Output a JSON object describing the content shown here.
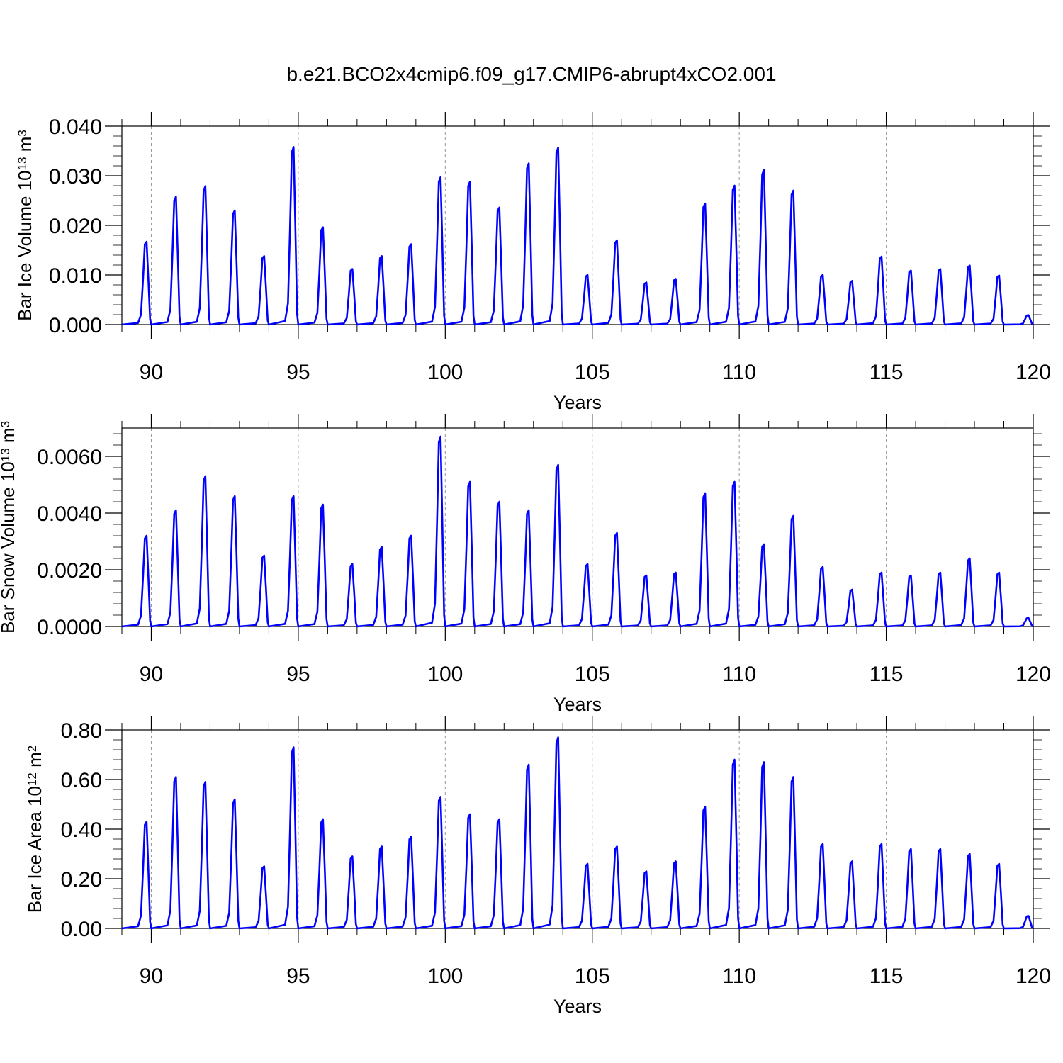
{
  "title": "b.e21.BCO2x4cmip6.f09_g17.CMIP6-abrupt4xCO2.001",
  "line_color": "#0000ff",
  "chart_data": [
    {
      "type": "line",
      "id": "ice-volume",
      "ylabel": "Bar Ice Volume 10",
      "ylabel_exp": "13",
      "ylabel_unit": " m",
      "ylabel_unit_exp": "3",
      "xlabel": "Years",
      "xlim": [
        89,
        120
      ],
      "ylim": [
        0,
        0.04
      ],
      "xticks": [
        90,
        95,
        100,
        105,
        110,
        115,
        120
      ],
      "xtick_labels": [
        "90",
        "95",
        "100",
        "105",
        "110",
        "115",
        "120"
      ],
      "yticks": [
        0,
        0.01,
        0.02,
        0.03,
        0.04
      ],
      "ytick_labels": [
        "0.000",
        "0.010",
        "0.020",
        "0.030",
        "0.040"
      ],
      "grid": "vertical dashed",
      "peaks": [
        0.0167,
        0.0258,
        0.0279,
        0.023,
        0.0138,
        0.0358,
        0.0196,
        0.0112,
        0.0138,
        0.0162,
        0.0297,
        0.0288,
        0.0236,
        0.0325,
        0.0357,
        0.01,
        0.017,
        0.0085,
        0.0092,
        0.0244,
        0.028,
        0.0312,
        0.027,
        0.01,
        0.0088,
        0.0137,
        0.0109,
        0.0112,
        0.0119,
        0.0099,
        0.0019
      ]
    },
    {
      "type": "line",
      "id": "snow-volume",
      "ylabel": "Bar Snow Volume 10",
      "ylabel_exp": "13",
      "ylabel_unit": " m",
      "ylabel_unit_exp": "3",
      "xlabel": "Years",
      "xlim": [
        89,
        120
      ],
      "ylim": [
        0,
        0.007
      ],
      "xticks": [
        90,
        95,
        100,
        105,
        110,
        115,
        120
      ],
      "xtick_labels": [
        "90",
        "95",
        "100",
        "105",
        "110",
        "115",
        "120"
      ],
      "yticks": [
        0,
        0.002,
        0.004,
        0.006
      ],
      "ytick_labels": [
        "0.0000",
        "0.0020",
        "0.0040",
        "0.0060"
      ],
      "grid": "vertical dashed",
      "peaks": [
        0.0032,
        0.0041,
        0.0053,
        0.0046,
        0.0025,
        0.0046,
        0.0043,
        0.0022,
        0.0028,
        0.0032,
        0.0067,
        0.0051,
        0.0044,
        0.0041,
        0.0057,
        0.0022,
        0.0033,
        0.0018,
        0.0019,
        0.0047,
        0.0051,
        0.0029,
        0.0039,
        0.0021,
        0.0013,
        0.0019,
        0.0018,
        0.0019,
        0.0024,
        0.0019,
        0.0003
      ]
    },
    {
      "type": "line",
      "id": "ice-area",
      "ylabel": "Bar Ice Area 10",
      "ylabel_exp": "12",
      "ylabel_unit": " m",
      "ylabel_unit_exp": "2",
      "xlabel": "Years",
      "xlim": [
        89,
        120
      ],
      "ylim": [
        0,
        0.8
      ],
      "xticks": [
        90,
        95,
        100,
        105,
        110,
        115,
        120
      ],
      "xtick_labels": [
        "90",
        "95",
        "100",
        "105",
        "110",
        "115",
        "120"
      ],
      "yticks": [
        0,
        0.2,
        0.4,
        0.6,
        0.8
      ],
      "ytick_labels": [
        "0.00",
        "0.20",
        "0.40",
        "0.60",
        "0.80"
      ],
      "grid": "vertical dashed",
      "peaks": [
        0.43,
        0.61,
        0.59,
        0.52,
        0.25,
        0.73,
        0.44,
        0.29,
        0.33,
        0.37,
        0.53,
        0.46,
        0.44,
        0.66,
        0.77,
        0.26,
        0.33,
        0.23,
        0.27,
        0.49,
        0.68,
        0.67,
        0.61,
        0.34,
        0.27,
        0.34,
        0.32,
        0.32,
        0.3,
        0.26,
        0.05
      ]
    }
  ]
}
